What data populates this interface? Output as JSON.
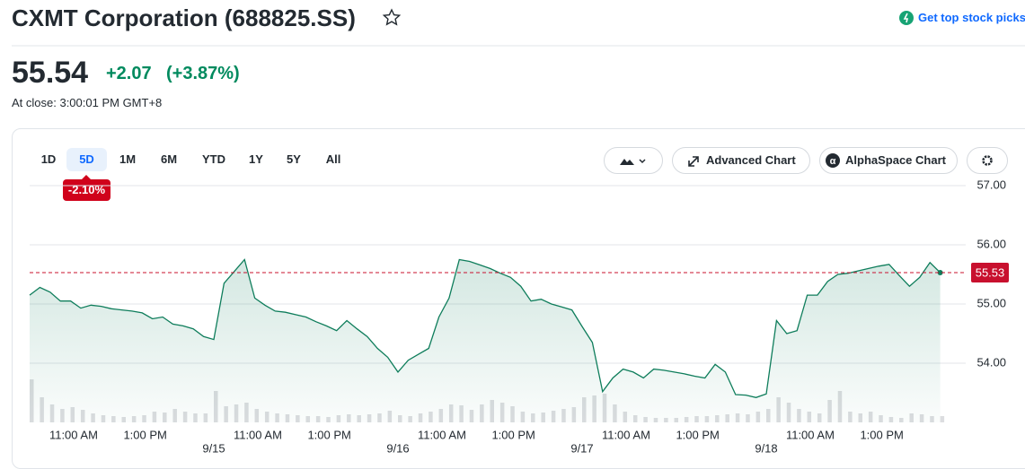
{
  "header": {
    "title": "CXMT Corporation (688825.SS)",
    "promo": "Get top stock picks"
  },
  "quote": {
    "price": "55.54",
    "change": "+2.07",
    "change_percent": "(+3.87%)",
    "status": "At close: 3:00:01 PM GMT+8"
  },
  "range_tabs": [
    "1D",
    "5D",
    "1M",
    "6M",
    "YTD",
    "1Y",
    "5Y",
    "All"
  ],
  "selected_range_index": 1,
  "range_performance": "-2.10%",
  "toolbar": {
    "advanced": "Advanced Chart",
    "alphaspace": "AlphaSpace Chart"
  },
  "chart_data": {
    "type": "area",
    "categories": [
      null,
      null,
      null,
      null,
      null,
      "11:00 AM",
      null,
      null,
      null,
      null,
      null,
      null,
      "1:00 PM",
      null,
      null,
      null,
      null,
      null,
      null,
      null,
      null,
      null,
      null,
      "11:00 AM",
      null,
      null,
      null,
      null,
      null,
      null,
      "1:00 PM",
      null,
      null,
      null,
      null,
      null,
      null,
      null,
      null,
      null,
      null,
      "11:00 AM",
      null,
      null,
      null,
      null,
      null,
      null,
      "1:00 PM",
      null,
      null,
      null,
      null,
      null,
      null,
      null,
      null,
      null,
      null,
      "11:00 AM",
      null,
      null,
      null,
      null,
      null,
      null,
      "1:00 PM",
      null,
      null,
      null,
      null,
      null,
      null,
      null,
      null,
      null,
      null,
      "11:00 AM",
      null,
      null,
      null,
      null,
      null,
      null,
      "1:00 PM",
      null,
      null,
      null,
      null,
      null
    ],
    "day_labels": [
      null,
      null,
      null,
      null,
      null,
      null,
      null,
      null,
      null,
      null,
      null,
      null,
      null,
      null,
      null,
      null,
      null,
      null,
      "9/15",
      null,
      null,
      null,
      null,
      null,
      null,
      null,
      null,
      null,
      null,
      null,
      null,
      null,
      null,
      null,
      null,
      null,
      "9/16",
      null,
      null,
      null,
      null,
      null,
      null,
      null,
      null,
      null,
      null,
      null,
      null,
      null,
      null,
      null,
      null,
      null,
      "9/17",
      null,
      null,
      null,
      null,
      null,
      null,
      null,
      null,
      null,
      null,
      null,
      null,
      null,
      null,
      null,
      null,
      null,
      "9/18",
      null,
      null,
      null,
      null,
      null,
      null,
      null,
      null,
      null,
      null,
      null,
      null,
      null,
      null,
      null,
      null,
      null
    ],
    "series": [
      {
        "color": "#0e7d5b",
        "values": [
          55.15,
          55.28,
          55.2,
          55.05,
          55.05,
          54.93,
          54.98,
          54.96,
          54.92,
          54.9,
          54.88,
          54.85,
          54.75,
          54.78,
          54.66,
          54.63,
          54.58,
          54.45,
          54.4,
          55.35,
          55.55,
          55.75,
          55.1,
          54.98,
          54.88,
          54.86,
          54.82,
          54.78,
          54.7,
          54.63,
          54.55,
          54.72,
          54.58,
          54.45,
          54.25,
          54.1,
          53.85,
          54.05,
          54.15,
          54.25,
          54.78,
          55.1,
          55.75,
          55.72,
          55.66,
          55.6,
          55.52,
          55.45,
          55.3,
          55.05,
          55.08,
          55.0,
          54.95,
          54.9,
          54.62,
          54.35,
          53.52,
          53.75,
          53.9,
          53.85,
          53.75,
          53.9,
          53.88,
          53.85,
          53.82,
          53.78,
          53.75,
          53.98,
          53.85,
          53.47,
          53.46,
          53.42,
          53.48,
          54.72,
          54.5,
          54.55,
          55.15,
          55.15,
          55.38,
          55.5,
          55.52,
          55.56,
          55.6,
          55.64,
          55.67,
          55.48,
          55.3,
          55.45,
          55.7,
          55.53
        ]
      }
    ],
    "volume": [
      96,
      56,
      40,
      30,
      34,
      28,
      20,
      16,
      14,
      12,
      14,
      16,
      24,
      22,
      30,
      24,
      20,
      20,
      70,
      36,
      40,
      44,
      30,
      24,
      20,
      18,
      16,
      14,
      14,
      12,
      16,
      18,
      16,
      18,
      20,
      26,
      16,
      14,
      20,
      24,
      30,
      40,
      38,
      28,
      40,
      50,
      44,
      36,
      24,
      20,
      22,
      26,
      30,
      34,
      56,
      60,
      64,
      40,
      24,
      16,
      12,
      10,
      10,
      10,
      12,
      14,
      14,
      16,
      18,
      20,
      18,
      24,
      30,
      56,
      44,
      30,
      24,
      20,
      50,
      70,
      24,
      20,
      24,
      16,
      12,
      10,
      20,
      18,
      14,
      14
    ],
    "volume_color": "#dcdde0",
    "reference_value": 55.53,
    "reference_color": "#c8102e",
    "ylim": [
      53.0,
      57.1
    ],
    "yticks": [
      {
        "value": 54,
        "label": "54.00"
      },
      {
        "value": 55,
        "label": "55.00"
      },
      {
        "value": 56,
        "label": "56.00"
      },
      {
        "value": 57,
        "label": "57.00"
      }
    ],
    "grid": true
  }
}
